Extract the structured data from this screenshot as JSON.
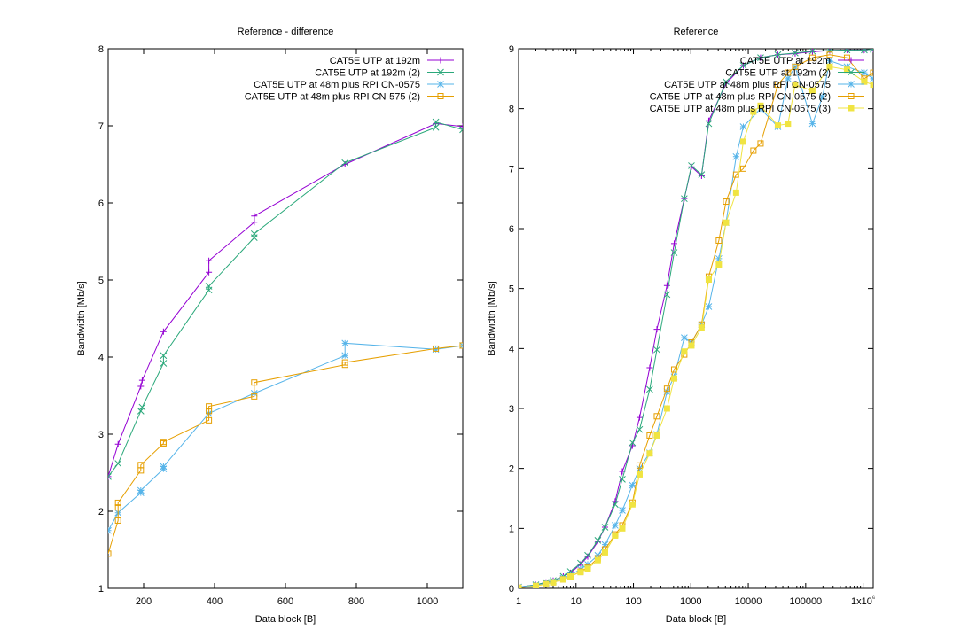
{
  "chart_data": [
    {
      "type": "line",
      "title": "Reference - difference",
      "xlabel": "Data block [B]",
      "ylabel": "Bandwidth [Mb/s]",
      "xscale": "linear",
      "xlim": [
        100,
        1100
      ],
      "ylim": [
        1,
        8
      ],
      "x_ticks": [
        200,
        400,
        600,
        800,
        1000
      ],
      "x_tick_labels": [
        "200",
        "400",
        "600",
        "800",
        "1000"
      ],
      "y_ticks": [
        1,
        2,
        3,
        4,
        5,
        6,
        7,
        8
      ],
      "y_tick_labels": [
        "1",
        "2",
        "3",
        "4",
        "5",
        "6",
        "7",
        "8"
      ],
      "grid": false,
      "legend_position": "top-right",
      "series": [
        {
          "name": "CAT5E UTP at 192m",
          "color": "#9400d3",
          "marker": "plus",
          "points": [
            [
              100,
              2.45
            ],
            [
              128,
              2.87
            ],
            [
              192,
              3.62
            ],
            [
              196,
              3.7
            ],
            [
              256,
              4.33
            ],
            [
              384,
              5.1
            ],
            [
              384,
              5.25
            ],
            [
              512,
              5.75
            ],
            [
              512,
              5.83
            ],
            [
              768,
              6.5
            ],
            [
              1024,
              7.03
            ],
            [
              1100,
              6.99
            ]
          ]
        },
        {
          "name": "CAT5E UTP at 192m (2)",
          "color": "#2aa87a",
          "marker": "cross",
          "points": [
            [
              100,
              2.45
            ],
            [
              128,
              2.62
            ],
            [
              192,
              3.3
            ],
            [
              196,
              3.35
            ],
            [
              256,
              3.92
            ],
            [
              256,
              4.02
            ],
            [
              384,
              4.87
            ],
            [
              384,
              4.92
            ],
            [
              512,
              5.55
            ],
            [
              512,
              5.6
            ],
            [
              768,
              6.52
            ],
            [
              1024,
              6.98
            ],
            [
              1024,
              7.05
            ],
            [
              1100,
              6.95
            ]
          ]
        },
        {
          "name": "CAT5E UTP at 48m plus RPI CN-0575",
          "color": "#56b4e9",
          "marker": "star",
          "points": [
            [
              100,
              1.75
            ],
            [
              128,
              1.98
            ],
            [
              192,
              2.24
            ],
            [
              192,
              2.27
            ],
            [
              256,
              2.55
            ],
            [
              256,
              2.58
            ],
            [
              384,
              3.27
            ],
            [
              512,
              3.53
            ],
            [
              768,
              4.02
            ],
            [
              768,
              4.18
            ],
            [
              1024,
              4.1
            ],
            [
              1100,
              4.15
            ]
          ]
        },
        {
          "name": "CAT5E UTP at 48m plus RPI CN-575 (2)",
          "color": "#e69f00",
          "marker": "square",
          "points": [
            [
              100,
              1.45
            ],
            [
              128,
              1.88
            ],
            [
              128,
              2.05
            ],
            [
              128,
              2.11
            ],
            [
              192,
              2.53
            ],
            [
              192,
              2.6
            ],
            [
              256,
              2.88
            ],
            [
              256,
              2.9
            ],
            [
              384,
              3.18
            ],
            [
              384,
              3.3
            ],
            [
              384,
              3.36
            ],
            [
              512,
              3.49
            ],
            [
              512,
              3.67
            ],
            [
              768,
              3.9
            ],
            [
              768,
              3.93
            ],
            [
              1024,
              4.11
            ],
            [
              1100,
              4.15
            ]
          ]
        }
      ]
    },
    {
      "type": "line",
      "title": "Reference",
      "xlabel": "Data block [B]",
      "ylabel": "Bandwidth [Mb/s]",
      "xscale": "log",
      "xlim": [
        1,
        1500000
      ],
      "ylim": [
        0,
        9
      ],
      "x_ticks": [
        1,
        10,
        100,
        1000,
        10000,
        100000,
        1000000
      ],
      "x_tick_labels": [
        "1",
        "10",
        "100",
        "1000",
        "10000",
        "100000",
        "1x10⁶"
      ],
      "y_ticks": [
        0,
        1,
        2,
        3,
        4,
        5,
        6,
        7,
        8,
        9
      ],
      "y_tick_labels": [
        "0",
        "1",
        "2",
        "3",
        "4",
        "5",
        "6",
        "7",
        "8",
        "9"
      ],
      "grid": false,
      "legend_position": "top-right",
      "series": [
        {
          "name": "CAT5E UTP at 192m",
          "color": "#9400d3",
          "marker": "plus",
          "points": [
            [
              1,
              0.02
            ],
            [
              2,
              0.06
            ],
            [
              3,
              0.1
            ],
            [
              4,
              0.13
            ],
            [
              6,
              0.2
            ],
            [
              8,
              0.26
            ],
            [
              12,
              0.4
            ],
            [
              16,
              0.53
            ],
            [
              24,
              0.78
            ],
            [
              32,
              1.02
            ],
            [
              48,
              1.45
            ],
            [
              64,
              1.95
            ],
            [
              96,
              2.38
            ],
            [
              128,
              2.85
            ],
            [
              192,
              3.68
            ],
            [
              256,
              4.32
            ],
            [
              384,
              5.05
            ],
            [
              512,
              5.75
            ],
            [
              768,
              6.5
            ],
            [
              1024,
              7.03
            ],
            [
              1536,
              6.88
            ],
            [
              2048,
              7.8
            ],
            [
              4096,
              8.42
            ],
            [
              8192,
              8.72
            ],
            [
              16384,
              8.85
            ],
            [
              32768,
              8.9
            ],
            [
              65536,
              8.92
            ],
            [
              131072,
              8.95
            ],
            [
              262144,
              8.97
            ],
            [
              524288,
              8.98
            ],
            [
              1048576,
              8.98
            ],
            [
              1500000,
              8.99
            ]
          ]
        },
        {
          "name": "CAT5E UTP at 192m (2)",
          "color": "#2aa87a",
          "marker": "cross",
          "points": [
            [
              1,
              0.02
            ],
            [
              2,
              0.06
            ],
            [
              3,
              0.1
            ],
            [
              4,
              0.13
            ],
            [
              6,
              0.2
            ],
            [
              8,
              0.28
            ],
            [
              12,
              0.42
            ],
            [
              16,
              0.55
            ],
            [
              24,
              0.8
            ],
            [
              32,
              1.02
            ],
            [
              48,
              1.4
            ],
            [
              64,
              1.82
            ],
            [
              96,
              2.43
            ],
            [
              128,
              2.65
            ],
            [
              192,
              3.32
            ],
            [
              256,
              3.98
            ],
            [
              384,
              4.9
            ],
            [
              512,
              5.6
            ],
            [
              768,
              6.5
            ],
            [
              1024,
              7.05
            ],
            [
              1536,
              6.9
            ],
            [
              2048,
              7.75
            ],
            [
              4096,
              8.45
            ],
            [
              8192,
              8.72
            ],
            [
              16384,
              8.85
            ],
            [
              32768,
              8.9
            ],
            [
              65536,
              8.93
            ],
            [
              131072,
              8.96
            ],
            [
              262144,
              8.97
            ],
            [
              524288,
              8.98
            ],
            [
              1048576,
              8.98
            ],
            [
              1500000,
              8.99
            ]
          ]
        },
        {
          "name": "CAT5E UTP at 48m plus RPI CN-0575",
          "color": "#56b4e9",
          "marker": "star",
          "points": [
            [
              1,
              0.02
            ],
            [
              2,
              0.05
            ],
            [
              3,
              0.08
            ],
            [
              4,
              0.11
            ],
            [
              6,
              0.17
            ],
            [
              8,
              0.22
            ],
            [
              12,
              0.32
            ],
            [
              16,
              0.4
            ],
            [
              24,
              0.55
            ],
            [
              32,
              0.73
            ],
            [
              48,
              1.05
            ],
            [
              64,
              1.3
            ],
            [
              96,
              1.72
            ],
            [
              128,
              2.0
            ],
            [
              192,
              2.26
            ],
            [
              256,
              2.57
            ],
            [
              384,
              3.28
            ],
            [
              512,
              3.53
            ],
            [
              768,
              4.18
            ],
            [
              1024,
              4.1
            ],
            [
              1536,
              4.4
            ],
            [
              2048,
              4.7
            ],
            [
              3072,
              5.5
            ],
            [
              4096,
              6.1
            ],
            [
              6144,
              7.2
            ],
            [
              8192,
              7.7
            ],
            [
              16384,
              8.0
            ],
            [
              32768,
              7.7
            ],
            [
              49152,
              8.5
            ],
            [
              65536,
              8.7
            ],
            [
              131072,
              7.75
            ],
            [
              196608,
              8.2
            ],
            [
              262144,
              8.8
            ],
            [
              524288,
              8.7
            ],
            [
              1048576,
              8.6
            ],
            [
              1500000,
              8.5
            ]
          ]
        },
        {
          "name": "CAT5E UTP at 48m plus RPI CN-0575 (2)",
          "color": "#e69f00",
          "marker": "square",
          "points": [
            [
              1,
              0.01
            ],
            [
              2,
              0.04
            ],
            [
              3,
              0.07
            ],
            [
              4,
              0.1
            ],
            [
              6,
              0.15
            ],
            [
              8,
              0.2
            ],
            [
              12,
              0.28
            ],
            [
              16,
              0.35
            ],
            [
              24,
              0.5
            ],
            [
              32,
              0.65
            ],
            [
              48,
              0.9
            ],
            [
              64,
              1.05
            ],
            [
              96,
              1.43
            ],
            [
              128,
              2.05
            ],
            [
              192,
              2.55
            ],
            [
              256,
              2.87
            ],
            [
              384,
              3.33
            ],
            [
              512,
              3.65
            ],
            [
              768,
              3.9
            ],
            [
              1024,
              4.1
            ],
            [
              1536,
              4.4
            ],
            [
              2048,
              5.2
            ],
            [
              3072,
              5.8
            ],
            [
              4096,
              6.45
            ],
            [
              6144,
              6.9
            ],
            [
              8192,
              7.0
            ],
            [
              12288,
              7.3
            ],
            [
              16384,
              7.42
            ],
            [
              32768,
              8.4
            ],
            [
              49152,
              8.6
            ],
            [
              65536,
              8.7
            ],
            [
              131072,
              8.85
            ],
            [
              262144,
              8.9
            ],
            [
              524288,
              8.85
            ],
            [
              1048576,
              8.5
            ],
            [
              1500000,
              8.6
            ]
          ]
        },
        {
          "name": "CAT5E UTP at 48m plus RPI CN-0575 (3)",
          "color": "#f0e442",
          "marker": "filled-square",
          "points": [
            [
              1,
              0.01
            ],
            [
              2,
              0.04
            ],
            [
              3,
              0.07
            ],
            [
              4,
              0.1
            ],
            [
              6,
              0.15
            ],
            [
              8,
              0.2
            ],
            [
              12,
              0.27
            ],
            [
              16,
              0.33
            ],
            [
              24,
              0.47
            ],
            [
              32,
              0.6
            ],
            [
              48,
              0.88
            ],
            [
              64,
              1.0
            ],
            [
              96,
              1.4
            ],
            [
              128,
              1.9
            ],
            [
              192,
              2.25
            ],
            [
              256,
              2.55
            ],
            [
              384,
              3.0
            ],
            [
              512,
              3.5
            ],
            [
              768,
              3.95
            ],
            [
              1024,
              4.05
            ],
            [
              1536,
              4.35
            ],
            [
              2048,
              5.15
            ],
            [
              3072,
              5.4
            ],
            [
              4096,
              6.1
            ],
            [
              6144,
              6.6
            ],
            [
              8192,
              7.45
            ],
            [
              12288,
              7.95
            ],
            [
              16384,
              8.05
            ],
            [
              32768,
              7.72
            ],
            [
              49152,
              7.75
            ],
            [
              65536,
              8.4
            ],
            [
              131072,
              8.3
            ],
            [
              262144,
              8.7
            ],
            [
              524288,
              8.65
            ],
            [
              1048576,
              8.45
            ],
            [
              1500000,
              8.4
            ]
          ]
        }
      ]
    }
  ]
}
